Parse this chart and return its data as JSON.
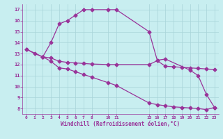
{
  "bg_color": "#c8eef0",
  "grid_color": "#a8d4d8",
  "line_color": "#993399",
  "xlabel": "Windchill (Refroidissement éolien,°C)",
  "ylim": [
    7.5,
    17.5
  ],
  "xlim": [
    -0.5,
    23.5
  ],
  "yticks": [
    8,
    9,
    10,
    11,
    12,
    13,
    14,
    15,
    16,
    17
  ],
  "xtick_vals": [
    0,
    1,
    2,
    3,
    4,
    5,
    6,
    7,
    8,
    10,
    11,
    15,
    16,
    17,
    18,
    19,
    20,
    21,
    22,
    23
  ],
  "line1_x": [
    0,
    1,
    2,
    3,
    4,
    5,
    6,
    7,
    8,
    10,
    11,
    15,
    16,
    17,
    20,
    21,
    22,
    23
  ],
  "line1_y": [
    13.4,
    13.0,
    12.7,
    14.0,
    15.7,
    16.0,
    16.5,
    17.0,
    17.0,
    17.0,
    17.0,
    15.0,
    12.4,
    12.5,
    11.5,
    11.0,
    9.3,
    8.1
  ],
  "line2_x": [
    0,
    2,
    3,
    4,
    5,
    6,
    7,
    8,
    10,
    11,
    15,
    16,
    17,
    18,
    19,
    20,
    21,
    22,
    23
  ],
  "line2_y": [
    13.4,
    12.7,
    12.6,
    12.3,
    12.2,
    12.15,
    12.1,
    12.05,
    12.0,
    12.0,
    12.0,
    12.35,
    11.85,
    11.8,
    11.75,
    11.7,
    11.65,
    11.6,
    11.55
  ],
  "line3_x": [
    2,
    3,
    4,
    5,
    6,
    7,
    8,
    10,
    11,
    15,
    16,
    17,
    18,
    19,
    20,
    21,
    22,
    23
  ],
  "line3_y": [
    12.7,
    12.3,
    11.7,
    11.6,
    11.35,
    11.1,
    10.85,
    10.35,
    10.1,
    8.5,
    8.35,
    8.25,
    8.15,
    8.1,
    8.05,
    8.0,
    7.9,
    8.1
  ]
}
